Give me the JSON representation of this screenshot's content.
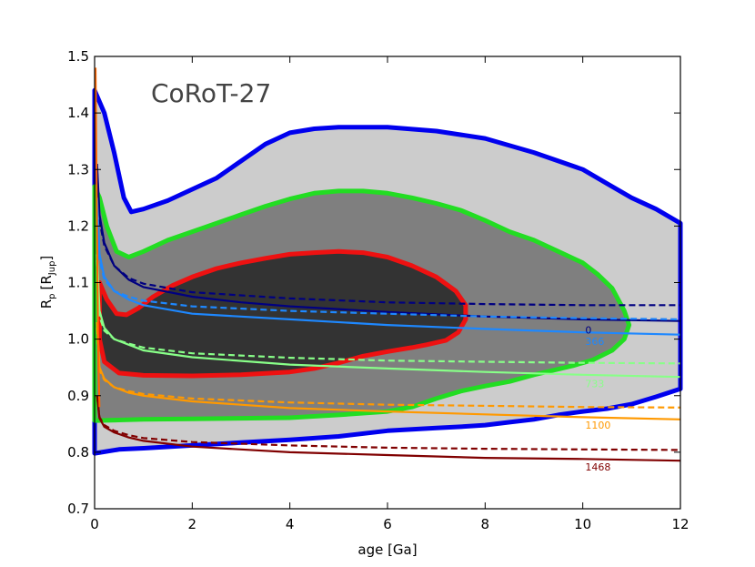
{
  "chart_data": {
    "type": "line",
    "title": "CoRoT-27",
    "xlabel": "age [Ga]",
    "ylabel": "R",
    "ylabel_sub": "p",
    "ylabel_unit": "[R",
    "ylabel_unit_sub": "Jup",
    "ylabel_unit_close": "]",
    "xlim": [
      0,
      12
    ],
    "ylim": [
      0.7,
      1.5
    ],
    "x_ticks": [
      0,
      2,
      4,
      6,
      8,
      10,
      12
    ],
    "y_ticks": [
      0.7,
      0.8,
      0.9,
      1.0,
      1.1,
      1.2,
      1.3,
      1.4,
      1.5
    ],
    "x_tick_labels": [
      "0",
      "2",
      "4",
      "6",
      "8",
      "10",
      "12"
    ],
    "y_tick_labels": [
      "0.7",
      "0.8",
      "0.9",
      "1.0",
      "1.1",
      "1.2",
      "1.3",
      "1.4",
      "1.5"
    ],
    "grid": false,
    "regions": [
      {
        "level": "outer",
        "fill": "#cccccc",
        "edge": "#0000ee",
        "points": [
          [
            0,
            1.44
          ],
          [
            0.2,
            1.4
          ],
          [
            0.4,
            1.33
          ],
          [
            0.6,
            1.25
          ],
          [
            0.75,
            1.225
          ],
          [
            1.0,
            1.23
          ],
          [
            1.5,
            1.245
          ],
          [
            2.0,
            1.265
          ],
          [
            2.5,
            1.285
          ],
          [
            3.0,
            1.315
          ],
          [
            3.5,
            1.345
          ],
          [
            4.0,
            1.365
          ],
          [
            4.5,
            1.372
          ],
          [
            5.0,
            1.375
          ],
          [
            6.0,
            1.375
          ],
          [
            7.0,
            1.368
          ],
          [
            8.0,
            1.355
          ],
          [
            9.0,
            1.33
          ],
          [
            10.0,
            1.3
          ],
          [
            10.5,
            1.275
          ],
          [
            11.0,
            1.25
          ],
          [
            11.5,
            1.23
          ],
          [
            12.0,
            1.205
          ],
          [
            12.0,
            0.912
          ],
          [
            11.5,
            0.898
          ],
          [
            11.0,
            0.885
          ],
          [
            10.5,
            0.877
          ],
          [
            10.0,
            0.872
          ],
          [
            9.5,
            0.866
          ],
          [
            9.0,
            0.858
          ],
          [
            8.5,
            0.853
          ],
          [
            8.0,
            0.848
          ],
          [
            7.5,
            0.845
          ],
          [
            7.0,
            0.843
          ],
          [
            6.0,
            0.838
          ],
          [
            5.0,
            0.828
          ],
          [
            4.0,
            0.822
          ],
          [
            3.0,
            0.817
          ],
          [
            2.0,
            0.812
          ],
          [
            1.0,
            0.807
          ],
          [
            0.5,
            0.805
          ],
          [
            0,
            0.798
          ]
        ]
      },
      {
        "level": "middle",
        "fill": "#7f7f7f",
        "edge": "#22dd22",
        "points": [
          [
            0,
            1.27
          ],
          [
            0.1,
            1.25
          ],
          [
            0.25,
            1.2
          ],
          [
            0.45,
            1.155
          ],
          [
            0.7,
            1.145
          ],
          [
            1.0,
            1.155
          ],
          [
            1.5,
            1.175
          ],
          [
            2.0,
            1.19
          ],
          [
            2.5,
            1.205
          ],
          [
            3.0,
            1.22
          ],
          [
            3.5,
            1.235
          ],
          [
            4.0,
            1.248
          ],
          [
            4.5,
            1.258
          ],
          [
            5.0,
            1.262
          ],
          [
            5.5,
            1.262
          ],
          [
            6.0,
            1.258
          ],
          [
            6.5,
            1.25
          ],
          [
            7.0,
            1.24
          ],
          [
            7.5,
            1.228
          ],
          [
            8.0,
            1.21
          ],
          [
            8.5,
            1.19
          ],
          [
            9.0,
            1.175
          ],
          [
            9.5,
            1.155
          ],
          [
            10.0,
            1.135
          ],
          [
            10.3,
            1.115
          ],
          [
            10.6,
            1.09
          ],
          [
            10.85,
            1.05
          ],
          [
            10.95,
            1.025
          ],
          [
            10.85,
            1.0
          ],
          [
            10.6,
            0.98
          ],
          [
            10.2,
            0.963
          ],
          [
            9.8,
            0.953
          ],
          [
            9.4,
            0.945
          ],
          [
            9.0,
            0.937
          ],
          [
            8.5,
            0.925
          ],
          [
            8.0,
            0.917
          ],
          [
            7.5,
            0.908
          ],
          [
            7.0,
            0.895
          ],
          [
            6.5,
            0.88
          ],
          [
            6.0,
            0.872
          ],
          [
            5.0,
            0.866
          ],
          [
            4.0,
            0.861
          ],
          [
            3.0,
            0.86
          ],
          [
            2.0,
            0.859
          ],
          [
            1.0,
            0.858
          ],
          [
            0.5,
            0.857
          ],
          [
            0,
            0.856
          ]
        ]
      },
      {
        "level": "inner",
        "fill": "#333333",
        "edge": "#ee1111",
        "points": [
          [
            0.1,
            1.1
          ],
          [
            0.25,
            1.07
          ],
          [
            0.45,
            1.045
          ],
          [
            0.65,
            1.043
          ],
          [
            0.9,
            1.055
          ],
          [
            1.2,
            1.075
          ],
          [
            1.6,
            1.095
          ],
          [
            2.0,
            1.11
          ],
          [
            2.5,
            1.125
          ],
          [
            3.0,
            1.135
          ],
          [
            3.5,
            1.143
          ],
          [
            4.0,
            1.15
          ],
          [
            4.5,
            1.153
          ],
          [
            5.0,
            1.155
          ],
          [
            5.5,
            1.153
          ],
          [
            6.0,
            1.145
          ],
          [
            6.5,
            1.13
          ],
          [
            7.0,
            1.11
          ],
          [
            7.4,
            1.085
          ],
          [
            7.6,
            1.06
          ],
          [
            7.6,
            1.035
          ],
          [
            7.45,
            1.012
          ],
          [
            7.2,
            0.998
          ],
          [
            6.8,
            0.99
          ],
          [
            6.5,
            0.985
          ],
          [
            6.0,
            0.978
          ],
          [
            5.5,
            0.97
          ],
          [
            5.0,
            0.958
          ],
          [
            4.5,
            0.948
          ],
          [
            4.0,
            0.942
          ],
          [
            3.0,
            0.937
          ],
          [
            2.0,
            0.935
          ],
          [
            1.0,
            0.936
          ],
          [
            0.5,
            0.94
          ],
          [
            0.2,
            0.96
          ],
          [
            0.1,
            1.0
          ]
        ]
      }
    ],
    "series": [
      {
        "color": "#000080",
        "style": "solid",
        "points": [
          [
            0.05,
            1.31
          ],
          [
            0.1,
            1.22
          ],
          [
            0.2,
            1.17
          ],
          [
            0.4,
            1.13
          ],
          [
            0.7,
            1.105
          ],
          [
            1,
            1.092
          ],
          [
            2,
            1.075
          ],
          [
            3,
            1.065
          ],
          [
            4,
            1.058
          ],
          [
            6,
            1.048
          ],
          [
            8,
            1.04
          ],
          [
            10,
            1.035
          ],
          [
            12,
            1.032
          ]
        ]
      },
      {
        "color": "#000080",
        "style": "dashed",
        "points": [
          [
            0.05,
            1.3
          ],
          [
            0.1,
            1.21
          ],
          [
            0.2,
            1.165
          ],
          [
            0.4,
            1.13
          ],
          [
            0.7,
            1.108
          ],
          [
            1,
            1.098
          ],
          [
            2,
            1.083
          ],
          [
            4,
            1.072
          ],
          [
            6,
            1.065
          ],
          [
            8,
            1.062
          ],
          [
            10,
            1.06
          ],
          [
            12,
            1.06
          ]
        ]
      },
      {
        "color": "#1e88ff",
        "style": "solid",
        "points": [
          [
            0.05,
            1.25
          ],
          [
            0.1,
            1.15
          ],
          [
            0.2,
            1.11
          ],
          [
            0.4,
            1.085
          ],
          [
            0.7,
            1.07
          ],
          [
            1,
            1.06
          ],
          [
            2,
            1.045
          ],
          [
            4,
            1.035
          ],
          [
            6,
            1.025
          ],
          [
            8,
            1.018
          ],
          [
            10,
            1.012
          ],
          [
            12,
            1.008
          ]
        ]
      },
      {
        "color": "#1e88ff",
        "style": "dashed",
        "points": [
          [
            0.05,
            1.24
          ],
          [
            0.1,
            1.14
          ],
          [
            0.2,
            1.105
          ],
          [
            0.4,
            1.085
          ],
          [
            0.7,
            1.075
          ],
          [
            1,
            1.068
          ],
          [
            2,
            1.058
          ],
          [
            4,
            1.05
          ],
          [
            6,
            1.045
          ],
          [
            8,
            1.04
          ],
          [
            10,
            1.037
          ],
          [
            12,
            1.035
          ]
        ]
      },
      {
        "color": "#88ff88",
        "style": "solid",
        "points": [
          [
            0.05,
            1.15
          ],
          [
            0.1,
            1.05
          ],
          [
            0.2,
            1.02
          ],
          [
            0.4,
            1.0
          ],
          [
            0.7,
            0.99
          ],
          [
            1,
            0.98
          ],
          [
            2,
            0.968
          ],
          [
            4,
            0.955
          ],
          [
            6,
            0.948
          ],
          [
            8,
            0.942
          ],
          [
            10,
            0.937
          ],
          [
            12,
            0.933
          ]
        ]
      },
      {
        "color": "#88ff88",
        "style": "dashed",
        "points": [
          [
            0.05,
            1.14
          ],
          [
            0.1,
            1.04
          ],
          [
            0.2,
            1.015
          ],
          [
            0.4,
            1.0
          ],
          [
            0.7,
            0.992
          ],
          [
            1,
            0.985
          ],
          [
            2,
            0.975
          ],
          [
            4,
            0.967
          ],
          [
            6,
            0.962
          ],
          [
            8,
            0.96
          ],
          [
            10,
            0.958
          ],
          [
            12,
            0.957
          ]
        ]
      },
      {
        "color": "#ff9900",
        "style": "solid",
        "points": [
          [
            0.05,
            1.03
          ],
          [
            0.1,
            0.95
          ],
          [
            0.2,
            0.93
          ],
          [
            0.4,
            0.915
          ],
          [
            0.7,
            0.905
          ],
          [
            1,
            0.9
          ],
          [
            2,
            0.89
          ],
          [
            4,
            0.878
          ],
          [
            6,
            0.872
          ],
          [
            8,
            0.867
          ],
          [
            10,
            0.862
          ],
          [
            12,
            0.858
          ]
        ]
      },
      {
        "color": "#ff9900",
        "style": "dashed",
        "points": [
          [
            0.05,
            1.02
          ],
          [
            0.1,
            0.945
          ],
          [
            0.2,
            0.928
          ],
          [
            0.4,
            0.915
          ],
          [
            0.7,
            0.908
          ],
          [
            1,
            0.903
          ],
          [
            2,
            0.895
          ],
          [
            4,
            0.888
          ],
          [
            6,
            0.884
          ],
          [
            8,
            0.882
          ],
          [
            10,
            0.88
          ],
          [
            12,
            0.879
          ]
        ]
      },
      {
        "color": "#800000",
        "style": "solid",
        "points": [
          [
            0.05,
            0.9
          ],
          [
            0.1,
            0.86
          ],
          [
            0.2,
            0.845
          ],
          [
            0.4,
            0.835
          ],
          [
            0.7,
            0.826
          ],
          [
            1,
            0.82
          ],
          [
            2,
            0.81
          ],
          [
            4,
            0.8
          ],
          [
            6,
            0.795
          ],
          [
            8,
            0.79
          ],
          [
            10,
            0.788
          ],
          [
            12,
            0.785
          ]
        ]
      },
      {
        "color": "#800000",
        "style": "dashed",
        "points": [
          [
            0.05,
            0.9
          ],
          [
            0.1,
            0.862
          ],
          [
            0.2,
            0.848
          ],
          [
            0.4,
            0.838
          ],
          [
            0.7,
            0.83
          ],
          [
            1,
            0.825
          ],
          [
            2,
            0.818
          ],
          [
            4,
            0.812
          ],
          [
            6,
            0.808
          ],
          [
            8,
            0.806
          ],
          [
            10,
            0.805
          ],
          [
            12,
            0.804
          ]
        ]
      }
    ],
    "curve_labels": [
      {
        "text": "0",
        "x": 10.05,
        "y": 1.01,
        "color": "#000080"
      },
      {
        "text": "366",
        "x": 10.05,
        "y": 0.99,
        "color": "#1e88ff"
      },
      {
        "text": "733",
        "x": 10.05,
        "y": 0.915,
        "color": "#88ff88"
      },
      {
        "text": "1100",
        "x": 10.05,
        "y": 0.842,
        "color": "#ff9900"
      },
      {
        "text": "1468",
        "x": 10.05,
        "y": 0.768,
        "color": "#800000"
      }
    ],
    "start_spike": {
      "color": "#ff6600",
      "points": [
        [
          0.02,
          1.48
        ],
        [
          0.04,
          1.3
        ],
        [
          0.06,
          1.1
        ],
        [
          0.08,
          0.95
        ],
        [
          0.1,
          0.88
        ]
      ]
    }
  }
}
